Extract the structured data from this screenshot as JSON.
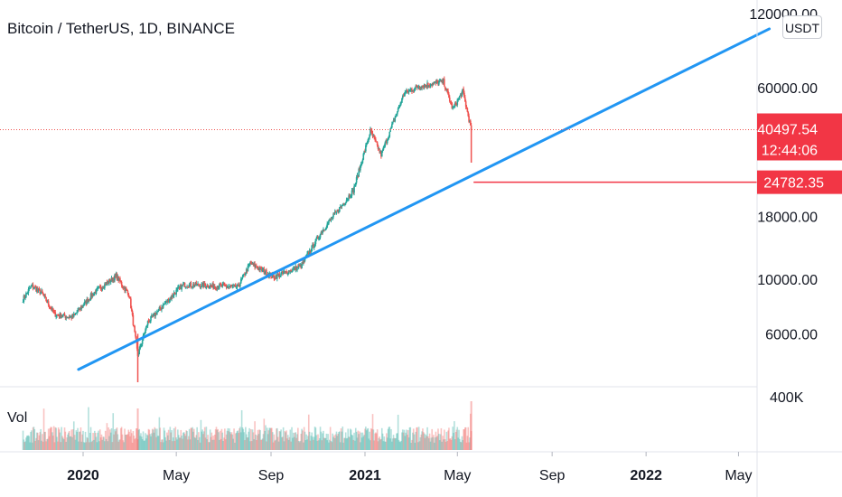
{
  "chart_title": "Bitcoin / TetherUS, 1D, BINANCE",
  "currency_button": "USDT",
  "volume_label": "Vol",
  "colors": {
    "up": "#26a69a",
    "down": "#ef5350",
    "trendline": "#2196f3",
    "level": "#f23645",
    "tag": "#f23645"
  },
  "chart_data": {
    "type": "candlestick",
    "price_scale": "log",
    "price_ticks": [
      "120000.00",
      "60000.00",
      "18000.00",
      "10000.00",
      "6000.00"
    ],
    "volume_tick": "400K",
    "date_ticks": [
      "2020",
      "May",
      "Sep",
      "2021",
      "May",
      "Sep",
      "2022",
      "May"
    ],
    "date_tick_bold": [
      true,
      false,
      false,
      true,
      false,
      false,
      true,
      false
    ],
    "last_price": "40497.54",
    "countdown": "12:44:06",
    "level_price": "24782.35",
    "price_path": [
      [
        "2019-10-15",
        8300
      ],
      [
        "2019-10-26",
        9400
      ],
      [
        "2019-11-08",
        8800
      ],
      [
        "2019-11-25",
        7200
      ],
      [
        "2019-12-18",
        7000
      ],
      [
        "2020-01-15",
        8800
      ],
      [
        "2020-02-13",
        10300
      ],
      [
        "2020-03-01",
        8600
      ],
      [
        "2020-03-12",
        4900
      ],
      [
        "2020-03-25",
        6700
      ],
      [
        "2020-04-29",
        8800
      ],
      [
        "2020-05-10",
        9500
      ],
      [
        "2020-06-15",
        9400
      ],
      [
        "2020-07-20",
        9300
      ],
      [
        "2020-08-05",
        11600
      ],
      [
        "2020-09-05",
        10200
      ],
      [
        "2020-10-10",
        11300
      ],
      [
        "2020-11-05",
        15500
      ],
      [
        "2020-12-17",
        23000
      ],
      [
        "2021-01-08",
        40000
      ],
      [
        "2021-01-22",
        32000
      ],
      [
        "2021-02-21",
        57000
      ],
      [
        "2021-03-13",
        61000
      ],
      [
        "2021-04-13",
        63500
      ],
      [
        "2021-04-25",
        49000
      ],
      [
        "2021-05-08",
        58000
      ],
      [
        "2021-05-19",
        40497.54
      ]
    ],
    "trendline": {
      "start": [
        "2019-12-26",
        4300
      ],
      "end": [
        "2022-06-10",
        104000
      ]
    },
    "level_line": {
      "from": "2021-05-22",
      "price": 24782.35
    }
  }
}
